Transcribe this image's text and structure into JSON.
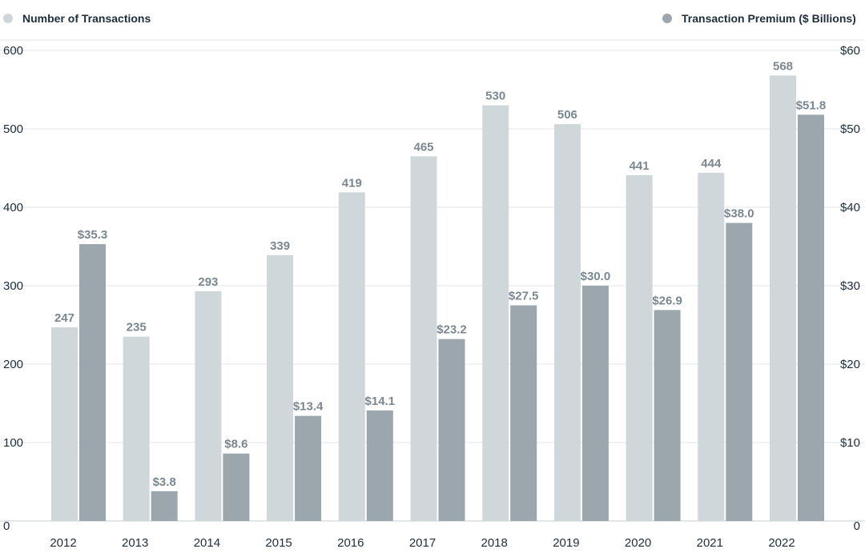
{
  "chart_data": {
    "type": "bar",
    "categories": [
      "2012",
      "2013",
      "2014",
      "2015",
      "2016",
      "2017",
      "2018",
      "2019",
      "2020",
      "2021",
      "2022"
    ],
    "series": [
      {
        "name": "Number of Transactions",
        "axis": "left",
        "color": "#cfd7da",
        "values": [
          247,
          235,
          293,
          339,
          419,
          465,
          530,
          506,
          441,
          444,
          568
        ],
        "labels": [
          "247",
          "235",
          "293",
          "339",
          "419",
          "465",
          "530",
          "506",
          "441",
          "444",
          "568"
        ]
      },
      {
        "name": "Transaction Premium ($ Billions)",
        "axis": "right",
        "color": "#9ba7ad",
        "values": [
          35.3,
          3.8,
          8.6,
          13.4,
          14.1,
          23.2,
          27.5,
          30.0,
          26.9,
          38.0,
          51.8
        ],
        "labels": [
          "$35.3",
          "$3.8",
          "$8.6",
          "$13.4",
          "$14.1",
          "$23.2",
          "$27.5",
          "$30.0",
          "$26.9",
          "$38.0",
          "$51.8"
        ]
      }
    ],
    "y_left": {
      "ylim": [
        0,
        600
      ],
      "ticks": [
        "0",
        "100",
        "200",
        "300",
        "400",
        "500",
        "600"
      ]
    },
    "y_right": {
      "ylim": [
        0,
        60
      ],
      "ticks": [
        "0",
        "$10",
        "$20",
        "$30",
        "$40",
        "$50",
        "$60"
      ]
    },
    "grid": true,
    "legend_position": "top"
  }
}
